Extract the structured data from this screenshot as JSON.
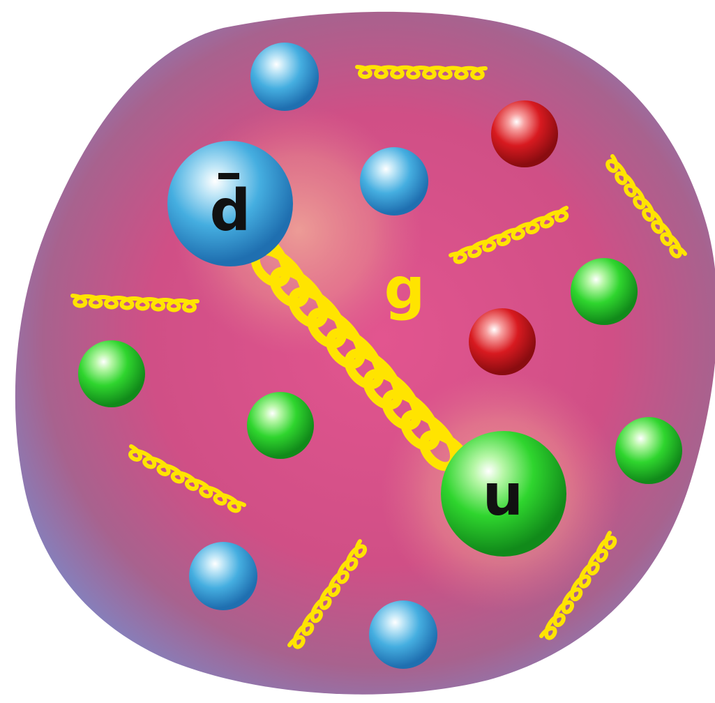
{
  "labels": {
    "antidown": "d",
    "up": "u",
    "gluon": "g"
  },
  "colors": {
    "background": "#ffffff",
    "hadron_core": "#d9508a",
    "hadron_edge": "#7f86c4",
    "blue_quark": "#3fa9dd",
    "green_quark": "#22d42a",
    "red_quark": "#d81a20",
    "gluon": "#ffe400",
    "text": "#111111"
  },
  "legend": {
    "blue": "blue-quark",
    "green": "green-quark",
    "red": "red-quark",
    "coil": "gluon-coil"
  }
}
